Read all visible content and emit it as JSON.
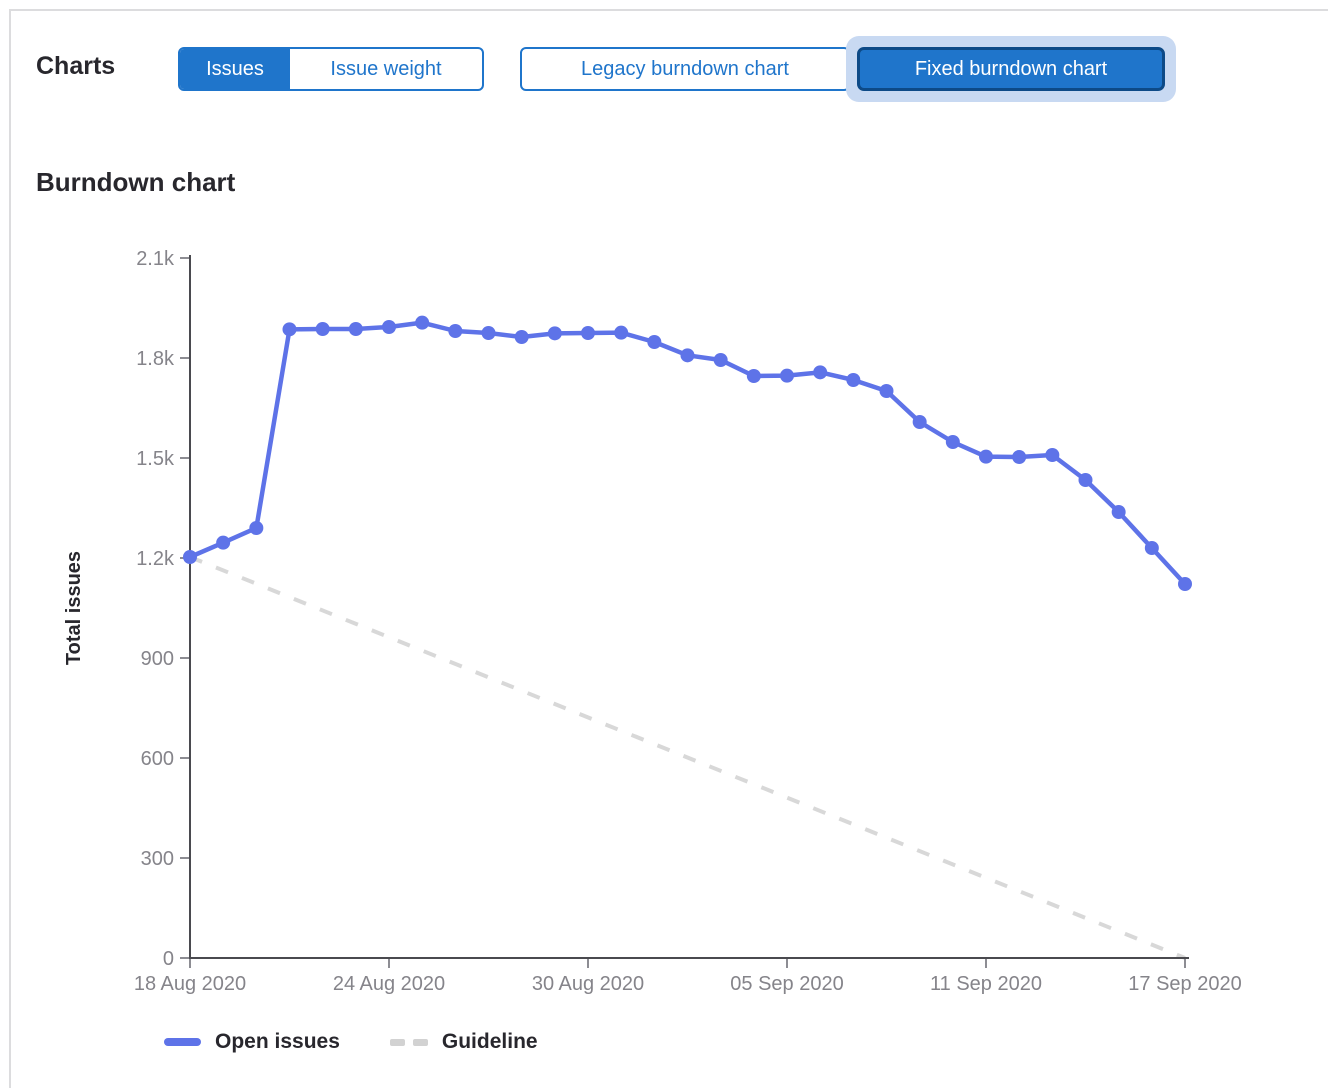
{
  "header": {
    "charts_label": "Charts",
    "issue_toggle": {
      "issues_label": "Issues",
      "issue_weight_label": "Issue weight",
      "selected": "Issues"
    },
    "chart_type_toggle": {
      "legacy_label": "Legacy burndown chart",
      "fixed_label": "Fixed burndown chart",
      "selected": "Fixed burndown chart"
    }
  },
  "section_title": "Burndown chart",
  "chart_data": {
    "type": "line",
    "title": "Burndown chart",
    "xlabel": "",
    "ylabel": "Total issues",
    "ylim": [
      0,
      2100
    ],
    "grid": false,
    "legend_position": "bottom",
    "y_tick_values": [
      0,
      300,
      600,
      900,
      1200,
      1500,
      1800,
      2100
    ],
    "y_tick_labels": [
      "0",
      "300",
      "600",
      "900",
      "1.2k",
      "1.5k",
      "1.8k",
      "2.1k"
    ],
    "x_range_days": [
      0,
      30
    ],
    "x_tick_days": [
      0,
      6,
      12,
      18,
      24,
      30
    ],
    "x_tick_labels": [
      "18 Aug 2020",
      "24 Aug 2020",
      "30 Aug 2020",
      "05 Sep 2020",
      "11 Sep 2020",
      "17 Sep 2020"
    ],
    "x_start_date": "18 Aug 2020",
    "x_end_date": "17 Sep 2020",
    "x_interval": "daily",
    "series": [
      {
        "name": "Open issues",
        "style": "solid",
        "color": "#5e73e8",
        "days": [
          0,
          1,
          2,
          3,
          4,
          5,
          6,
          7,
          8,
          9,
          10,
          11,
          12,
          13,
          14,
          15,
          16,
          17,
          18,
          19,
          20,
          21,
          22,
          23,
          24,
          25,
          26,
          27,
          28,
          29,
          30
        ],
        "values": [
          1203,
          1246,
          1290,
          1886,
          1887,
          1887,
          1893,
          1906,
          1881,
          1875,
          1863,
          1874,
          1875,
          1876,
          1848,
          1808,
          1794,
          1746,
          1747,
          1757,
          1734,
          1701,
          1608,
          1548,
          1504,
          1503,
          1509,
          1434,
          1338,
          1230,
          1122
        ]
      },
      {
        "name": "Guideline",
        "style": "dashed",
        "color": "#d8d8d8",
        "days": [
          0,
          30
        ],
        "values": [
          1203,
          0
        ]
      }
    ]
  },
  "legend": [
    {
      "label": "Open issues",
      "swatch": "solid-line",
      "color": "#5e73e8"
    },
    {
      "label": "Guideline",
      "swatch": "dashed-line",
      "color": "#d2d2d2"
    }
  ],
  "colors": {
    "accent_blue": "#1f75cb",
    "selected_border": "#0d4a87",
    "focus_ring": "#c8d9f2",
    "open_issues_line": "#5e73e8",
    "guideline": "#d8d8d8",
    "axis": "#4a4a4f",
    "tick": "#8d8d93",
    "tick_label": "#85848a",
    "text": "#28272d",
    "panel_border": "#dcdcde"
  }
}
